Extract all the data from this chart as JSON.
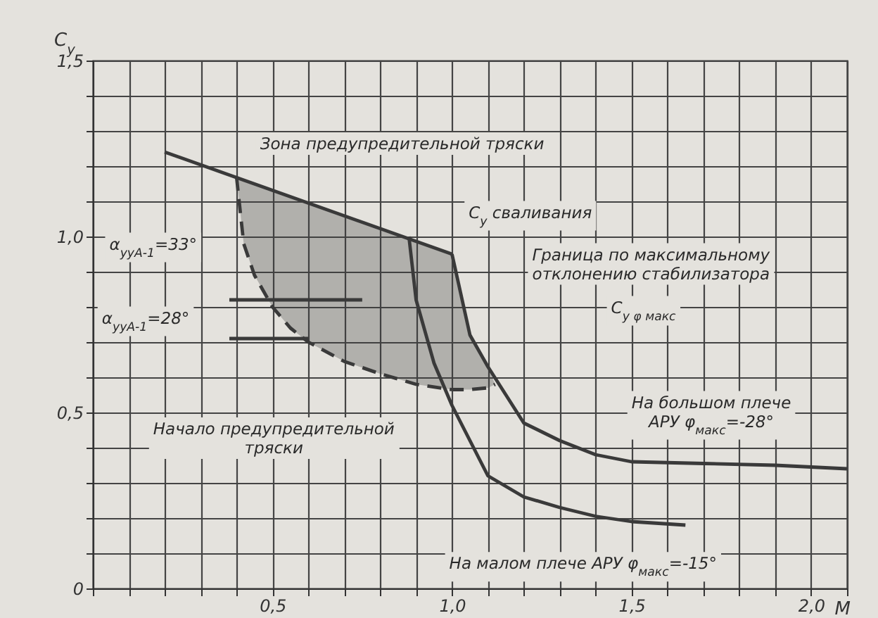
{
  "chart_data": {
    "type": "line",
    "xlabel": "M",
    "ylabel": "C$_{y}$",
    "xlim": [
      0,
      2.1
    ],
    "ylim": [
      0,
      1.5
    ],
    "xticks": [
      {
        "value": 0,
        "label": null
      },
      {
        "value": 0.1,
        "label": null
      },
      {
        "value": 0.2,
        "label": null
      },
      {
        "value": 0.3,
        "label": null
      },
      {
        "value": 0.4,
        "label": null
      },
      {
        "value": 0.5,
        "label": "0,5"
      },
      {
        "value": 0.6,
        "label": null
      },
      {
        "value": 0.7,
        "label": null
      },
      {
        "value": 0.8,
        "label": null
      },
      {
        "value": 0.9,
        "label": null
      },
      {
        "value": 1.0,
        "label": "1,0"
      },
      {
        "value": 1.1,
        "label": null
      },
      {
        "value": 1.2,
        "label": null
      },
      {
        "value": 1.3,
        "label": null
      },
      {
        "value": 1.4,
        "label": null
      },
      {
        "value": 1.5,
        "label": "1,5"
      },
      {
        "value": 1.6,
        "label": null
      },
      {
        "value": 1.7,
        "label": null
      },
      {
        "value": 1.8,
        "label": null
      },
      {
        "value": 1.9,
        "label": null
      },
      {
        "value": 2.0,
        "label": "2,0"
      },
      {
        "value": 2.1,
        "label": null
      }
    ],
    "yticks": [
      0,
      {
        "value": 0.1,
        "label": null
      },
      {
        "value": 0.2,
        "label": null
      },
      {
        "value": 0.3,
        "label": null
      },
      {
        "value": 0.4,
        "label": null
      },
      {
        "value": 0.5,
        "label": "0,5"
      },
      {
        "value": 0.6,
        "label": null
      },
      {
        "value": 0.7,
        "label": null
      },
      {
        "value": 0.8,
        "label": null
      },
      {
        "value": 0.9,
        "label": null
      },
      {
        "value": 1.0,
        "label": "1,0"
      },
      {
        "value": 1.1,
        "label": null
      },
      {
        "value": 1.2,
        "label": null
      },
      {
        "value": 1.3,
        "label": null
      },
      {
        "value": 1.4,
        "label": null
      },
      {
        "value": 1.5,
        "label": "1,5"
      }
    ],
    "grid": true,
    "series": [
      {
        "color": "#3a3a3a",
        "x": [
          0.2,
          1.0
        ],
        "values": [
          1.24,
          0.95
        ]
      },
      {
        "color": "#3a3a3a",
        "x": [
          1.0,
          1.05,
          1.1,
          1.15,
          1.2,
          1.25,
          1.3,
          1.4,
          1.5,
          1.7,
          1.9,
          2.1
        ],
        "values": [
          0.95,
          0.72,
          0.63,
          0.55,
          0.47,
          0.445,
          0.42,
          0.38,
          0.36,
          0.355,
          0.35,
          0.34
        ]
      },
      {
        "color": "#3a3a3a",
        "x": [
          0.88,
          0.9,
          0.95,
          1.0,
          1.05,
          1.1,
          1.2,
          1.3,
          1.4,
          1.5,
          1.65
        ],
        "values": [
          1.0,
          0.82,
          0.64,
          0.52,
          0.42,
          0.32,
          0.26,
          0.23,
          0.205,
          0.19,
          0.18
        ]
      },
      {
        "color": "#3a3a3a",
        "line_style": "dashed",
        "x": [
          0.4,
          0.42,
          0.45,
          0.5,
          0.55,
          0.6,
          0.7,
          0.8,
          0.9,
          1.0,
          1.05,
          1.1,
          1.12
        ],
        "values": [
          1.17,
          0.98,
          0.89,
          0.8,
          0.74,
          0.7,
          0.645,
          0.61,
          0.58,
          0.565,
          0.565,
          0.57,
          0.58
        ],
        "lower": [
          1.17,
          0.98,
          0.89,
          0.8,
          0.74,
          0.7,
          0.645,
          0.61,
          0.58,
          0.565,
          0.565,
          0.57,
          0.58
        ],
        "upper": [
          1.17,
          1.16,
          1.15,
          1.13,
          1.11,
          1.1,
          1.06,
          1.02,
          0.99,
          0.95,
          0.72,
          0.63,
          0.58
        ]
      },
      {
        "color": "#3a3a3a",
        "x": [
          0.38,
          0.75
        ],
        "values": [
          0.82,
          0.82
        ]
      },
      {
        "color": "#3a3a3a",
        "x": [
          0.38,
          0.6
        ],
        "values": [
          0.71,
          0.71
        ]
      }
    ],
    "annotations": [
      "Зона предупредительной тряски",
      "C$_{y}$ сваливания",
      "Граница по максимальному\nотклонению стабилизатора",
      "C$_{y φ макс}$",
      "α$_{ууА-1}$=33°",
      "α$_{ууА-1}$=28°",
      "Начало предупредительной\nтряски",
      "На большом плече\nАРУ φ$_{макс}$=-28°",
      "На малом плече АРУ φ$_{макс}$=-15°"
    ]
  }
}
